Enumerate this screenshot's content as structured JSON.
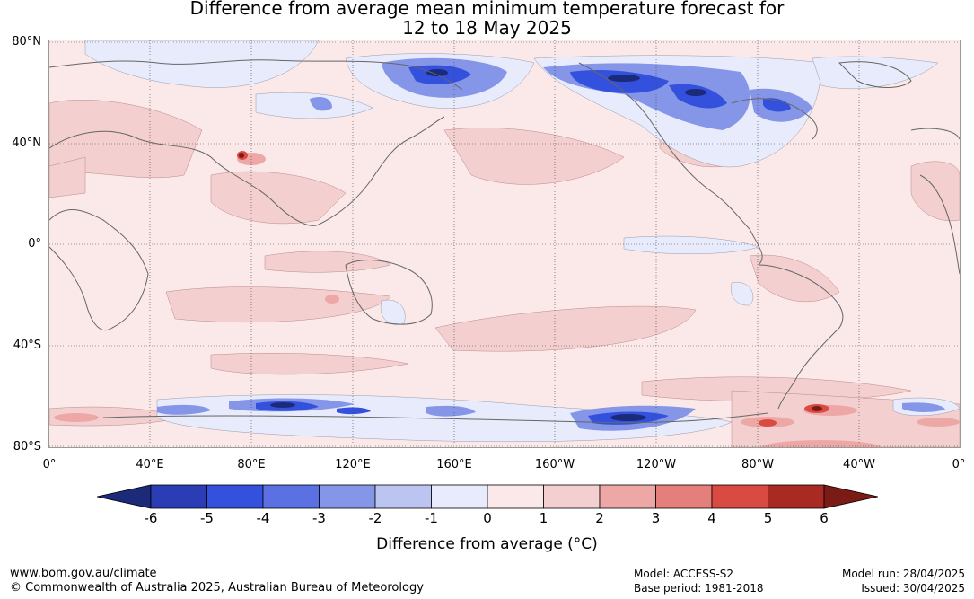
{
  "title_line1": "Difference from average mean minimum temperature forecast for",
  "title_line2": "12 to 18 May 2025",
  "map": {
    "lat_labels": [
      "80°N",
      "40°N",
      "0°",
      "40°S",
      "80°S"
    ],
    "lon_labels": [
      "0°",
      "40°E",
      "80°E",
      "120°E",
      "160°E",
      "160°W",
      "120°W",
      "80°W",
      "40°W",
      "0°"
    ]
  },
  "colorbar": {
    "ticks": [
      "-6",
      "-5",
      "-4",
      "-3",
      "-2",
      "-1",
      "0",
      "1",
      "2",
      "3",
      "4",
      "5",
      "6"
    ],
    "label": "Difference from average (°C)",
    "colors": [
      "#1c2a7a",
      "#2b3db5",
      "#3451dd",
      "#5b70e2",
      "#8595e8",
      "#bcc4f2",
      "#e7ebfb",
      "#fbe9e9",
      "#f3cfcf",
      "#eda8a6",
      "#e47f7b",
      "#d94a42",
      "#a82a23",
      "#7a1b16"
    ]
  },
  "footer": {
    "website": "www.bom.gov.au/climate",
    "copyright": "© Commonwealth of Australia 2025, Australian Bureau of Meteorology",
    "model": "Model: ACCESS-S2",
    "base_period": "Base period: 1981-2018",
    "model_run": "Model run: 28/04/2025",
    "issued": "Issued: 30/04/2025"
  }
}
